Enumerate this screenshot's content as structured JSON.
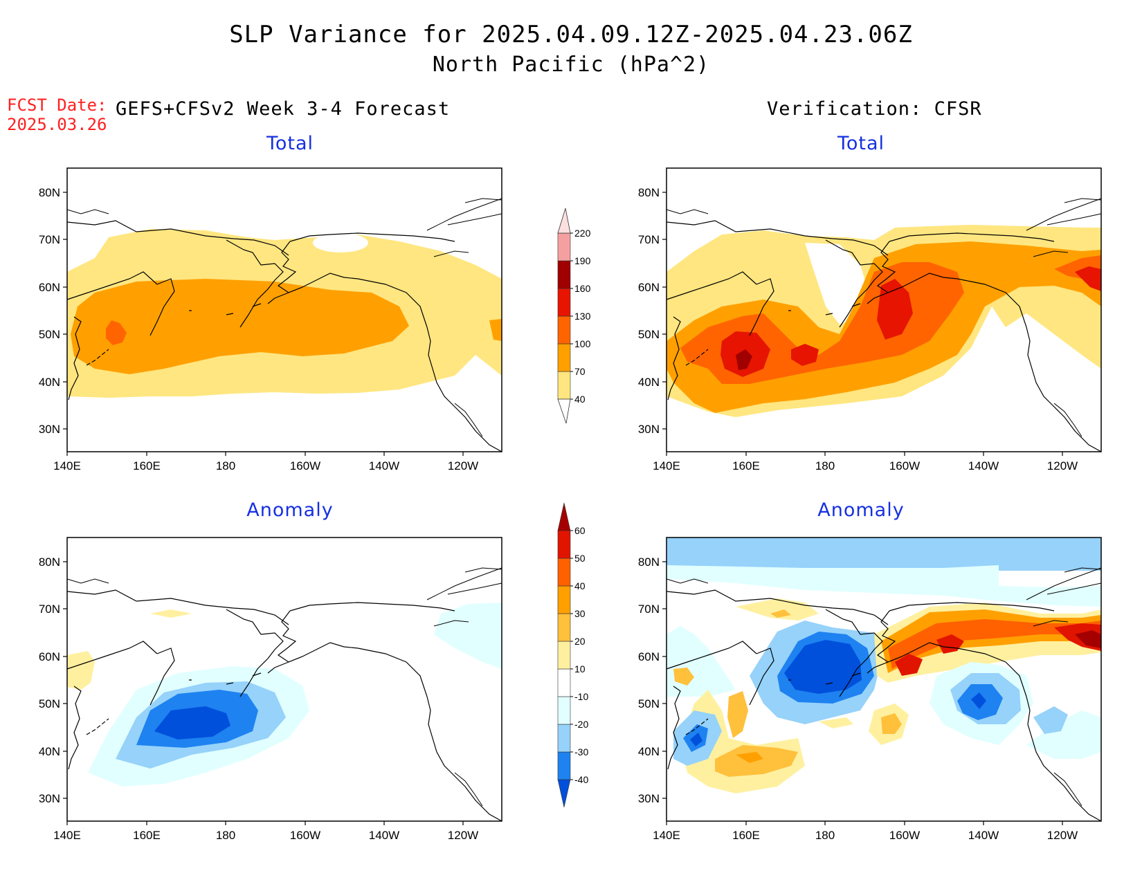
{
  "header": {
    "title": "SLP Variance for 2025.04.09.12Z-2025.04.23.06Z",
    "subtitle": "North Pacific (hPa^2)",
    "fcst_label": "FCST Date:",
    "fcst_date": "2025.03.26",
    "left_column": "GEFS+CFSv2 Week 3-4 Forecast",
    "right_column": "Verification: CFSR"
  },
  "panels": {
    "forecast_total": "Total",
    "verification_total": "Total",
    "forecast_anomaly": "Anomaly",
    "verification_anomaly": "Anomaly"
  },
  "axes": {
    "lat_ticks": [
      "80N",
      "70N",
      "60N",
      "50N",
      "40N",
      "30N"
    ],
    "lon_ticks": [
      "140E",
      "160E",
      "180",
      "160W",
      "140W",
      "120W"
    ]
  },
  "colorbars": {
    "total": {
      "labels": [
        "40",
        "70",
        "100",
        "130",
        "160",
        "190",
        "220"
      ],
      "colors": [
        "#ffe680",
        "#ffa000",
        "#ff6400",
        "#e61400",
        "#a00000",
        "#f5a0a0",
        "#fce0e0"
      ]
    },
    "anomaly": {
      "labels": [
        "-40",
        "-30",
        "-20",
        "-10",
        "10",
        "20",
        "30",
        "40",
        "50",
        "60"
      ],
      "colors": [
        "#0050dc",
        "#1e82f0",
        "#96d2fa",
        "#e1ffff",
        "#ffffff",
        "#fff0a0",
        "#ffc03c",
        "#ffa000",
        "#ff6000",
        "#e11400",
        "#a50000"
      ]
    }
  },
  "colors": {
    "title_text": "#000000",
    "fcst_text": "#ff2020",
    "panel_title": "#1530e0"
  }
}
